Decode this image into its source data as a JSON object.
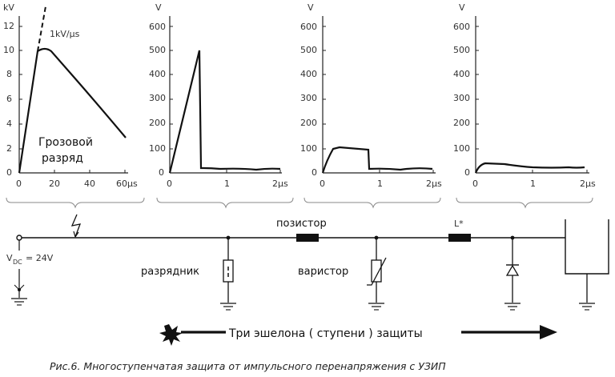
{
  "charts": [
    {
      "unit": "kV",
      "y_ticks": [
        "12",
        "10",
        "8",
        "6",
        "4",
        "2",
        "0"
      ],
      "x_ticks": [
        "0",
        "20",
        "40",
        "60µs"
      ],
      "annotation": "1kV/µs",
      "text_lines": [
        "Грозовой",
        "разряд"
      ]
    },
    {
      "unit": "V",
      "y_ticks": [
        "600",
        "500",
        "400",
        "300",
        "200",
        "100",
        "0"
      ],
      "x_ticks": [
        "0",
        "1",
        "2µs"
      ]
    },
    {
      "unit": "V",
      "y_ticks": [
        "600",
        "500",
        "400",
        "300",
        "200",
        "100",
        "0"
      ],
      "x_ticks": [
        "0",
        "1",
        "2µs"
      ]
    },
    {
      "unit": "V",
      "y_ticks": [
        "600",
        "500",
        "400",
        "300",
        "200",
        "100",
        "0"
      ],
      "x_ticks": [
        "0",
        "1",
        "2µs"
      ]
    }
  ],
  "circuit": {
    "source_label": "V",
    "source_sub": "DC",
    "source_value": "= 24V",
    "posistor_label": "позистор",
    "inductor_label": "L*",
    "arrester_label": "разрядник",
    "varistor_label": "варистор"
  },
  "arrow_label": "Три эшелона ( ступени ) защиты",
  "caption": "Рис.6. Многоступенчатая защита от импульсного перенапряжения с УЗИП",
  "colors": {
    "line": "#111111",
    "axis": "#222222",
    "text": "#111111"
  }
}
